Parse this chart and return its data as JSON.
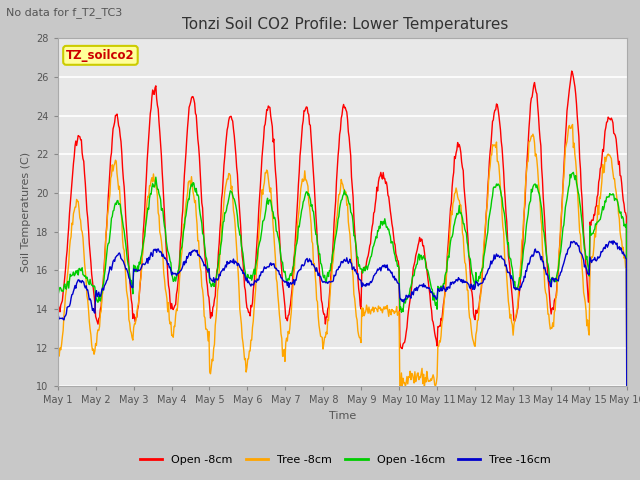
{
  "title": "Tonzi Soil CO2 Profile: Lower Temperatures",
  "subtitle": "No data for f_T2_TC3",
  "ylabel": "Soil Temperatures (C)",
  "xlabel": "Time",
  "ylim": [
    10,
    28
  ],
  "yticks": [
    10,
    12,
    14,
    16,
    18,
    20,
    22,
    24,
    26,
    28
  ],
  "xtick_labels": [
    "May 1",
    "May 2",
    "May 3",
    "May 4",
    "May 5",
    "May 6",
    "May 7",
    "May 8",
    "May 9",
    "May 10",
    "May 11",
    "May 12",
    "May 13",
    "May 14",
    "May 15",
    "May 16"
  ],
  "legend_labels": [
    "Open -8cm",
    "Tree -8cm",
    "Open -16cm",
    "Tree -16cm"
  ],
  "legend_colors": [
    "#ff0000",
    "#ffa500",
    "#00cc00",
    "#0000cc"
  ],
  "fig_bg_color": "#c8c8c8",
  "plot_bg_color": "#e8e8e8",
  "watermark_text": "TZ_soilco2",
  "watermark_bg": "#ffff99",
  "watermark_border": "#cccc00",
  "n_days": 15,
  "pts_per_day": 48,
  "title_fontsize": 11,
  "subtitle_fontsize": 8,
  "ylabel_fontsize": 8,
  "xlabel_fontsize": 8,
  "tick_fontsize": 7,
  "legend_fontsize": 8
}
